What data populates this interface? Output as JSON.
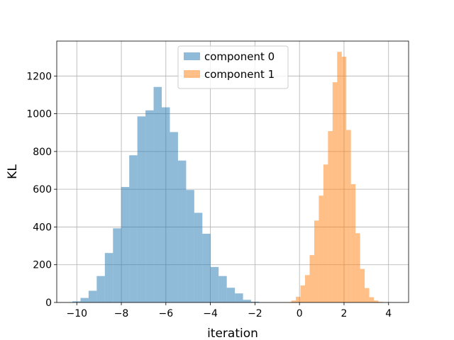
{
  "chart_data": {
    "type": "histogram",
    "xlabel": "iteration",
    "ylabel": "KL",
    "xlim": [
      -10.9,
      4.9
    ],
    "ylim": [
      0,
      1385
    ],
    "xticks": [
      -10,
      -8,
      -6,
      -4,
      -2,
      0,
      2,
      4
    ],
    "yticks": [
      0,
      200,
      400,
      600,
      800,
      1000,
      1200
    ],
    "grid": true,
    "legend_position": "upper center",
    "series": [
      {
        "name": "component 0",
        "color": "#1f77b4",
        "alpha": 0.5,
        "bin_edges": [
          -10.2,
          -9.835,
          -9.47,
          -9.105,
          -8.74,
          -8.375,
          -8.01,
          -7.645,
          -7.28,
          -6.915,
          -6.55,
          -6.185,
          -5.82,
          -5.455,
          -5.09,
          -4.725,
          -4.36,
          -3.995,
          -3.63,
          -3.265,
          -2.9,
          -2.535,
          -2.17,
          -1.805
        ],
        "counts": [
          6,
          24,
          62,
          140,
          262,
          393,
          612,
          780,
          986,
          1018,
          1142,
          1034,
          903,
          752,
          596,
          475,
          364,
          188,
          140,
          78,
          48,
          14,
          4
        ]
      },
      {
        "name": "component 1",
        "color": "#ff7f0e",
        "alpha": 0.5,
        "bin_edges": [
          -0.78,
          -0.574,
          -0.368,
          -0.162,
          0.044,
          0.25,
          0.456,
          0.662,
          0.868,
          1.074,
          1.28,
          1.486,
          1.692,
          1.898,
          2.104,
          2.31,
          2.516,
          2.722,
          2.928,
          3.134,
          3.34,
          3.546,
          3.752,
          3.958,
          4.164,
          4.37
        ],
        "counts": [
          1,
          2,
          10,
          30,
          90,
          145,
          251,
          434,
          566,
          731,
          908,
          1167,
          1328,
          1302,
          914,
          627,
          367,
          178,
          76,
          28,
          10,
          3,
          1,
          1,
          1
        ]
      }
    ]
  }
}
